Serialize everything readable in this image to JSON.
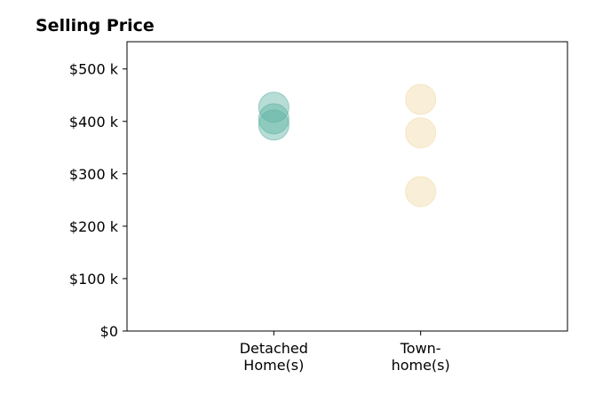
{
  "chart_data": {
    "type": "strip",
    "title": "Selling Price",
    "categories": [
      "Detached\nHome(s)",
      "Town-\nhome(s)"
    ],
    "values": [
      [
        427,
        405,
        393
      ],
      [
        442,
        378,
        266
      ]
    ],
    "colors": [
      "#5fb3a3",
      "#f2dba8"
    ],
    "ylim": [
      0,
      552
    ],
    "yticks": [
      {
        "value": 0,
        "label": "$0"
      },
      {
        "value": 100,
        "label": "$100 k"
      },
      {
        "value": 200,
        "label": "$200 k"
      },
      {
        "value": 300,
        "label": "$300 k"
      },
      {
        "value": 400,
        "label": "$400 k"
      },
      {
        "value": 500,
        "label": "$500 k"
      }
    ]
  }
}
